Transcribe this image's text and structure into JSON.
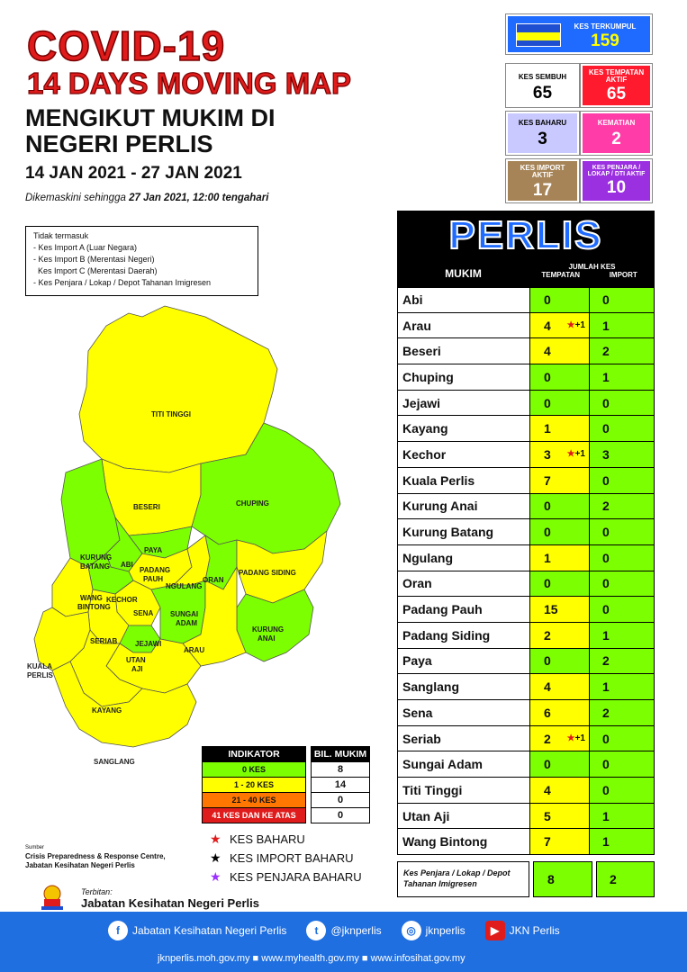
{
  "header": {
    "title_line1": "COVID-19",
    "title_line2": "14 DAYS MOVING MAP",
    "subtitle_line1": "MENGIKUT MUKIM DI",
    "subtitle_line2": "NEGERI PERLIS",
    "date_range": "14 JAN 2021 - 27 JAN 2021",
    "updated_prefix": "Dikemaskini sehingga ",
    "updated_time": "27 Jan 2021, 12:00 tengahari"
  },
  "stats": {
    "terkumpul": {
      "label": "KES TERKUMPUL",
      "value": "159"
    },
    "sembuh": {
      "label": "KES SEMBUH",
      "value": "65"
    },
    "tempatan_aktif": {
      "label": "KES TEMPATAN AKTIF",
      "value": "65"
    },
    "baharu": {
      "label": "KES BAHARU",
      "value": "3"
    },
    "kematian": {
      "label": "KEMATIAN",
      "value": "2"
    },
    "import_aktif": {
      "label": "KES IMPORT AKTIF",
      "value": "17"
    },
    "penjara_aktif": {
      "label": "KES PENJARA / LOKAP / DTI AKTIF",
      "value": "10"
    }
  },
  "exclusion_note": {
    "heading": "Tidak termasuk",
    "items": [
      "- Kes Import A (Luar Negara)",
      "- Kes Import B (Merentasi Negeri)",
      "  Kes Import C (Merentasi Daerah)",
      "- Kes Penjara / Lokap / Depot Tahanan Imigresen"
    ]
  },
  "map_labels": {
    "titi_tinggi": "TITI TINGGI",
    "beseri": "BESERI",
    "chuping": "CHUPING",
    "kurung_batang": "KURUNG BATANG",
    "abi": "ABI",
    "paya": "PAYA",
    "padang_pauh": "PADANG PAUH",
    "ngulang": "NGULANG",
    "oran": "ORAN",
    "padang_siding": "PADANG SIDING",
    "kechor": "KECHOR",
    "wang_bintong": "WANG BINTONG",
    "sena": "SENA",
    "sungai_adam": "SUNGAI ADAM",
    "kurung_anai": "KURUNG ANAI",
    "seriab": "SERIAB",
    "jejawi": "JEJAWI",
    "arau": "ARAU",
    "kuala_perlis": "KUALA PERLIS",
    "utan_aji": "UTAN AJI",
    "kayang": "KAYANG",
    "sanglang": "SANGLANG"
  },
  "legend": {
    "col1": "INDIKATOR",
    "col2": "BIL. MUKIM",
    "rows": [
      {
        "label": "0 KES",
        "count": "8",
        "color": "#7cff00"
      },
      {
        "label": "1 - 20 KES",
        "count": "14",
        "color": "#ffff00"
      },
      {
        "label": "21 - 40 KES",
        "count": "0",
        "color": "#ff7700"
      },
      {
        "label": "41 KES DAN KE ATAS",
        "count": "0",
        "color": "#e01b1b"
      }
    ]
  },
  "stars": [
    {
      "label": "KES BAHARU",
      "color": "#e01b1b"
    },
    {
      "label": "KES IMPORT BAHARU",
      "color": "#000000"
    },
    {
      "label": "KES PENJARA BAHARU",
      "color": "#9b30ff"
    }
  ],
  "source": {
    "label": "Sumber",
    "line1": "Crisis Preparedness & Response Centre,",
    "line2": "Jabatan Kesihatan Negeri Perlis"
  },
  "publisher": {
    "label": "Terbitan:",
    "name": "Jabatan Kesihatan Negeri Perlis"
  },
  "table": {
    "state": "PERLIS",
    "col_mukim": "MUKIM",
    "col_jumlah": "JUMLAH KES",
    "col_tempatan": "TEMPATAN",
    "col_import": "IMPORT",
    "rows": [
      {
        "name": "Abi",
        "tempatan": "0",
        "import": "0",
        "add": ""
      },
      {
        "name": "Arau",
        "tempatan": "4",
        "import": "1",
        "add": "+1"
      },
      {
        "name": "Beseri",
        "tempatan": "4",
        "import": "2",
        "add": ""
      },
      {
        "name": "Chuping",
        "tempatan": "0",
        "import": "1",
        "add": ""
      },
      {
        "name": "Jejawi",
        "tempatan": "0",
        "import": "0",
        "add": ""
      },
      {
        "name": "Kayang",
        "tempatan": "1",
        "import": "0",
        "add": ""
      },
      {
        "name": "Kechor",
        "tempatan": "3",
        "import": "3",
        "add": "+1"
      },
      {
        "name": "Kuala Perlis",
        "tempatan": "7",
        "import": "0",
        "add": ""
      },
      {
        "name": "Kurung Anai",
        "tempatan": "0",
        "import": "2",
        "add": ""
      },
      {
        "name": "Kurung Batang",
        "tempatan": "0",
        "import": "0",
        "add": ""
      },
      {
        "name": "Ngulang",
        "tempatan": "1",
        "import": "0",
        "add": ""
      },
      {
        "name": "Oran",
        "tempatan": "0",
        "import": "0",
        "add": ""
      },
      {
        "name": "Padang Pauh",
        "tempatan": "15",
        "import": "0",
        "add": ""
      },
      {
        "name": "Padang Siding",
        "tempatan": "2",
        "import": "1",
        "add": ""
      },
      {
        "name": "Paya",
        "tempatan": "0",
        "import": "2",
        "add": ""
      },
      {
        "name": "Sanglang",
        "tempatan": "4",
        "import": "1",
        "add": ""
      },
      {
        "name": "Sena",
        "tempatan": "6",
        "import": "2",
        "add": ""
      },
      {
        "name": "Seriab",
        "tempatan": "2",
        "import": "0",
        "add": "+1"
      },
      {
        "name": "Sungai Adam",
        "tempatan": "0",
        "import": "0",
        "add": ""
      },
      {
        "name": "Titi Tinggi",
        "tempatan": "4",
        "import": "0",
        "add": ""
      },
      {
        "name": "Utan Aji",
        "tempatan": "5",
        "import": "1",
        "add": ""
      },
      {
        "name": "Wang Bintong",
        "tempatan": "7",
        "import": "1",
        "add": ""
      }
    ],
    "prison_row": {
      "name": "Kes Penjara / Lokap / Depot Tahanan Imigresen",
      "tempatan": "8",
      "import": "2"
    }
  },
  "footer": {
    "facebook": "Jabatan Kesihatan Negeri Perlis",
    "twitter": "@jknperlis",
    "instagram": "jknperlis",
    "youtube": "JKN Perlis",
    "links": "jknperlis.moh.gov.my ■ www.myhealth.gov.my ■ www.infosihat.gov.my"
  }
}
